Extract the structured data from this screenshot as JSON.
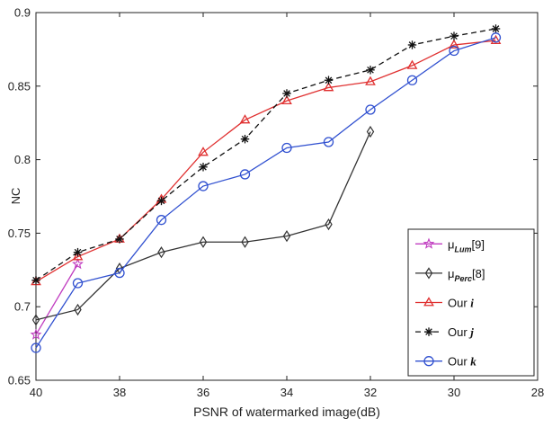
{
  "chart_data": {
    "type": "line",
    "title": "",
    "xlabel": "PSNR of watermarked image(dB)",
    "ylabel": "NC",
    "xlim": [
      28,
      40
    ],
    "x_reversed": true,
    "ylim": [
      0.65,
      0.9
    ],
    "x_ticks": [
      40,
      38,
      36,
      34,
      32,
      30,
      28
    ],
    "y_ticks": [
      0.65,
      0.7,
      0.75,
      0.8,
      0.85,
      0.9
    ],
    "grid": false,
    "legend_position": "bottom-right",
    "series": [
      {
        "name": "μLum[9]",
        "legend_base": "μ",
        "legend_sub": "Lum",
        "legend_suffix": "[9]",
        "color": "#c03cc0",
        "marker": "star",
        "dash": false,
        "x": [
          40,
          39
        ],
        "y": [
          0.681,
          0.729
        ]
      },
      {
        "name": "μPerc[8]",
        "legend_base": "μ",
        "legend_sub": "Perc",
        "legend_suffix": "[8]",
        "color": "#333333",
        "marker": "diamond",
        "dash": false,
        "x": [
          40,
          39,
          38,
          37,
          36,
          35,
          34,
          33,
          32
        ],
        "y": [
          0.691,
          0.698,
          0.726,
          0.737,
          0.744,
          0.744,
          0.748,
          0.756,
          0.819
        ]
      },
      {
        "name": "Our i",
        "legend_base": "Our ",
        "legend_var": "i",
        "color": "#e03030",
        "marker": "triangle",
        "dash": false,
        "x": [
          40,
          39,
          38,
          37,
          36,
          35,
          34,
          33,
          32,
          31,
          30,
          29
        ],
        "y": [
          0.717,
          0.734,
          0.746,
          0.773,
          0.805,
          0.827,
          0.84,
          0.849,
          0.853,
          0.864,
          0.878,
          0.881
        ]
      },
      {
        "name": "Our j",
        "legend_base": "Our ",
        "legend_var": "j",
        "color": "#111111",
        "marker": "asterisk",
        "dash": true,
        "x": [
          40,
          39,
          38,
          37,
          36,
          35,
          34,
          33,
          32,
          31,
          30,
          29
        ],
        "y": [
          0.718,
          0.737,
          0.746,
          0.772,
          0.795,
          0.814,
          0.845,
          0.854,
          0.861,
          0.878,
          0.884,
          0.889
        ]
      },
      {
        "name": "Our k",
        "legend_base": "Our ",
        "legend_var": "k",
        "color": "#3050d0",
        "marker": "circle",
        "dash": false,
        "x": [
          40,
          39,
          38,
          37,
          36,
          35,
          34,
          33,
          32,
          31,
          30,
          29
        ],
        "y": [
          0.672,
          0.716,
          0.723,
          0.759,
          0.782,
          0.79,
          0.808,
          0.812,
          0.834,
          0.854,
          0.874,
          0.883
        ]
      }
    ]
  }
}
